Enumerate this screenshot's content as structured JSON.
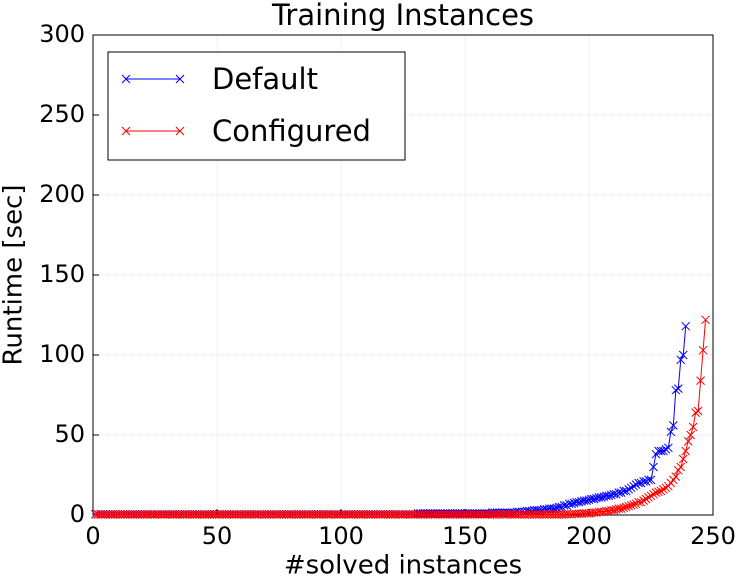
{
  "chart_data": {
    "type": "line",
    "title": "Training Instances",
    "x_label": "#solved instances",
    "y_label": "Runtime [sec]",
    "x": [
      1,
      2,
      3,
      4,
      5,
      6,
      7,
      8,
      9,
      10,
      11,
      12,
      13,
      14,
      15,
      16,
      17,
      18,
      19,
      20,
      21,
      22,
      23,
      24,
      25,
      26,
      27,
      28,
      29,
      30,
      31,
      32,
      33,
      34,
      35,
      36,
      37,
      38,
      39,
      40,
      41,
      42,
      43,
      44,
      45,
      46,
      47,
      48,
      49,
      50,
      51,
      52,
      53,
      54,
      55,
      56,
      57,
      58,
      59,
      60,
      61,
      62,
      63,
      64,
      65,
      66,
      67,
      68,
      69,
      70,
      71,
      72,
      73,
      74,
      75,
      76,
      77,
      78,
      79,
      80,
      81,
      82,
      83,
      84,
      85,
      86,
      87,
      88,
      89,
      90,
      91,
      92,
      93,
      94,
      95,
      96,
      97,
      98,
      99,
      100,
      101,
      102,
      103,
      104,
      105,
      106,
      107,
      108,
      109,
      110,
      111,
      112,
      113,
      114,
      115,
      116,
      117,
      118,
      119,
      120,
      121,
      122,
      123,
      124,
      125,
      126,
      127,
      128,
      129,
      130,
      131,
      132,
      133,
      134,
      135,
      136,
      137,
      138,
      139,
      140,
      141,
      142,
      143,
      144,
      145,
      146,
      147,
      148,
      149,
      150,
      151,
      152,
      153,
      154,
      155,
      156,
      157,
      158,
      159,
      160,
      161,
      162,
      163,
      164,
      165,
      166,
      167,
      168,
      169,
      170,
      171,
      172,
      173,
      174,
      175,
      176,
      177,
      178,
      179,
      180,
      181,
      182,
      183,
      184,
      185,
      186,
      187,
      188,
      189,
      190,
      191,
      192,
      193,
      194,
      195,
      196,
      197,
      198,
      199,
      200,
      201,
      202,
      203,
      204,
      205,
      206,
      207,
      208,
      209,
      210,
      211,
      212,
      213,
      214,
      215,
      216,
      217,
      218,
      219,
      220,
      221,
      222,
      223,
      224,
      225,
      226,
      227,
      228,
      229,
      230,
      231,
      232,
      233,
      234,
      235,
      236,
      237,
      238,
      239,
      240,
      241,
      242,
      243,
      244,
      245,
      246,
      247
    ],
    "series": [
      {
        "name": "Default",
        "color": "#0000ff",
        "values": [
          0.5,
          0.5,
          0.5,
          0.5,
          0.5,
          0.5,
          0.5,
          0.5,
          0.5,
          0.5,
          0.5,
          0.5,
          0.5,
          0.5,
          0.5,
          0.5,
          0.5,
          0.5,
          0.5,
          0.5,
          0.5,
          0.5,
          0.5,
          0.5,
          0.5,
          0.5,
          0.5,
          0.5,
          0.5,
          0.5,
          0.5,
          0.5,
          0.5,
          0.5,
          0.5,
          0.5,
          0.5,
          0.5,
          0.5,
          0.5,
          0.5,
          0.5,
          0.5,
          0.5,
          0.5,
          0.5,
          0.5,
          0.5,
          0.5,
          0.5,
          0.5,
          0.5,
          0.5,
          0.5,
          0.5,
          0.5,
          0.5,
          0.5,
          0.5,
          0.5,
          0.5,
          0.5,
          0.5,
          0.5,
          0.5,
          0.5,
          0.5,
          0.5,
          0.5,
          0.5,
          0.5,
          0.5,
          0.5,
          0.5,
          0.5,
          0.5,
          0.5,
          0.5,
          0.5,
          0.5,
          0.5,
          0.5,
          0.5,
          0.5,
          0.5,
          0.5,
          0.5,
          0.5,
          0.5,
          0.5,
          0.5,
          0.5,
          0.5,
          0.5,
          0.5,
          0.5,
          0.5,
          0.5,
          0.5,
          0.5,
          0.5,
          0.5,
          0.5,
          0.5,
          0.5,
          0.5,
          0.5,
          0.5,
          0.5,
          0.5,
          0.5,
          0.5,
          0.5,
          0.5,
          0.5,
          0.5,
          0.5,
          0.5,
          0.5,
          0.5,
          0.5,
          0.5,
          0.5,
          0.5,
          0.5,
          0.5,
          0.5,
          0.5,
          0.5,
          0.5,
          1,
          1,
          1,
          1,
          1,
          1,
          1,
          1,
          1,
          1,
          1,
          1,
          1,
          1,
          1,
          1,
          1,
          1,
          1,
          1,
          1,
          1,
          1,
          1,
          1,
          1,
          1,
          1,
          1,
          1,
          1.5,
          1.5,
          1.5,
          1.5,
          1.5,
          1.5,
          1.5,
          1.5,
          1.5,
          1.5,
          2,
          2,
          2,
          2,
          2.5,
          2.5,
          2.5,
          3,
          3,
          3,
          3,
          3.5,
          3.5,
          4,
          4,
          4,
          4.5,
          5,
          5,
          6,
          6,
          7,
          7,
          7.5,
          8,
          8,
          8.5,
          9,
          9,
          9.5,
          10,
          10,
          10.5,
          11,
          11,
          11.5,
          12,
          12,
          12.5,
          13,
          13,
          14,
          14,
          15,
          15,
          16,
          17,
          18,
          19,
          20,
          20,
          21,
          21,
          22,
          22,
          30,
          38,
          40,
          40,
          40,
          41,
          42,
          52,
          56,
          78,
          79,
          97,
          100,
          118,
          null,
          null,
          null,
          null,
          null,
          null,
          null,
          null
        ]
      },
      {
        "name": "Configured",
        "color": "#ff0000",
        "values": [
          0.3,
          0.3,
          0.3,
          0.3,
          0.3,
          0.3,
          0.3,
          0.3,
          0.3,
          0.3,
          0.3,
          0.3,
          0.3,
          0.3,
          0.3,
          0.3,
          0.3,
          0.3,
          0.3,
          0.3,
          0.3,
          0.3,
          0.3,
          0.3,
          0.3,
          0.3,
          0.3,
          0.3,
          0.3,
          0.3,
          0.3,
          0.3,
          0.3,
          0.3,
          0.3,
          0.3,
          0.3,
          0.3,
          0.3,
          0.3,
          0.3,
          0.3,
          0.3,
          0.3,
          0.3,
          0.3,
          0.3,
          0.3,
          0.3,
          0.3,
          0.3,
          0.3,
          0.3,
          0.3,
          0.3,
          0.3,
          0.3,
          0.3,
          0.3,
          0.3,
          0.3,
          0.3,
          0.3,
          0.3,
          0.3,
          0.3,
          0.3,
          0.3,
          0.3,
          0.3,
          0.3,
          0.3,
          0.3,
          0.3,
          0.3,
          0.3,
          0.3,
          0.3,
          0.3,
          0.3,
          0.3,
          0.3,
          0.3,
          0.3,
          0.3,
          0.3,
          0.3,
          0.3,
          0.3,
          0.3,
          0.3,
          0.3,
          0.3,
          0.3,
          0.3,
          0.3,
          0.3,
          0.3,
          0.3,
          0.3,
          0.3,
          0.3,
          0.3,
          0.3,
          0.3,
          0.3,
          0.3,
          0.3,
          0.3,
          0.3,
          0.3,
          0.3,
          0.3,
          0.3,
          0.3,
          0.3,
          0.3,
          0.3,
          0.3,
          0.3,
          0.3,
          0.3,
          0.3,
          0.3,
          0.3,
          0.3,
          0.3,
          0.3,
          0.3,
          0.3,
          0.3,
          0.3,
          0.3,
          0.3,
          0.3,
          0.3,
          0.3,
          0.3,
          0.3,
          0.3,
          0.3,
          0.3,
          0.3,
          0.3,
          0.3,
          0.3,
          0.3,
          0.3,
          0.3,
          0.3,
          0.3,
          0.3,
          0.3,
          0.3,
          0.3,
          0.3,
          0.3,
          0.3,
          0.3,
          0.3,
          0.3,
          0.3,
          0.3,
          0.3,
          0.3,
          0.3,
          0.3,
          0.3,
          0.3,
          0.3,
          0.3,
          0.3,
          0.3,
          0.3,
          0.3,
          0.3,
          0.3,
          0.3,
          0.3,
          0.3,
          0.3,
          0.3,
          0.3,
          0.3,
          0.3,
          0.3,
          0.3,
          0.3,
          0.3,
          0.3,
          0.5,
          0.5,
          0.5,
          0.7,
          0.7,
          0.8,
          0.8,
          1,
          1,
          1,
          1.2,
          1.5,
          1.5,
          2,
          2,
          2,
          2.5,
          2.5,
          3,
          3,
          3.5,
          4,
          4,
          4.5,
          5,
          5.5,
          6,
          6.5,
          7,
          8,
          8,
          9,
          10,
          11,
          12,
          13,
          14,
          14.5,
          15,
          16,
          17,
          18,
          20,
          22,
          24,
          28,
          30,
          35,
          40,
          46,
          50,
          55,
          64,
          65,
          84,
          103,
          122
        ]
      }
    ],
    "xlim": [
      0,
      250
    ],
    "xticks": [
      0,
      50,
      100,
      150,
      200,
      250
    ],
    "ylim": [
      0,
      300
    ],
    "yticks": [
      0,
      50,
      100,
      150,
      200,
      250,
      300
    ],
    "grid": true,
    "legend": "upper left"
  }
}
